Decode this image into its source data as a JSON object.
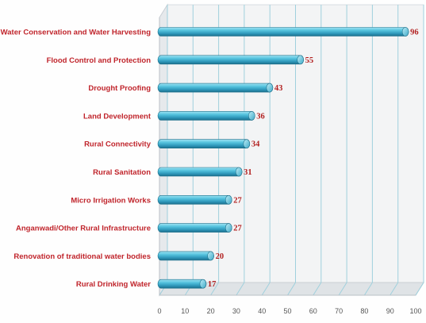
{
  "chart_data": {
    "type": "bar",
    "orientation": "horizontal",
    "categories": [
      "Water Conservation and Water Harvesting",
      "Flood Control and Protection",
      "Drought Proofing",
      "Land Development",
      "Rural Connectivity",
      "Rural Sanitation",
      "Micro Irrigation Works",
      "Anganwadi/Other Rural Infrastructure",
      "Renovation of traditional water bodies",
      "Rural Drinking Water"
    ],
    "values": [
      96,
      55,
      43,
      36,
      34,
      31,
      27,
      27,
      20,
      17
    ],
    "data_labels": [
      "96",
      "55",
      "43",
      "36",
      "34",
      "31",
      "27",
      "27",
      "20",
      "17"
    ],
    "x_ticks": [
      "0",
      "10",
      "20",
      "30",
      "40",
      "50",
      "60",
      "70",
      "80",
      "90",
      "100"
    ],
    "xlim": [
      0,
      100
    ],
    "grid": true,
    "colors": {
      "bar_top": "#9fe3f3",
      "bar_mid": "#3fb4d2",
      "bar_bottom": "#1b6f8c",
      "bar_cap": "#6fcde3",
      "label_text": "#c0242b",
      "value_text": "#b22020",
      "grid_line": "#9fd0dd",
      "back_wall": "#f3f4f5",
      "floor": "#c9cfd4"
    }
  }
}
